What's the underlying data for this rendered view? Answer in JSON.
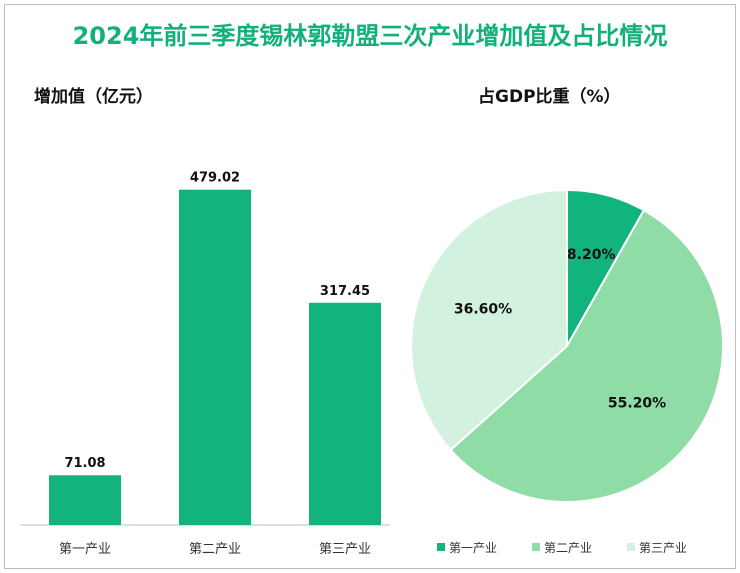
{
  "title": "2024年前三季度锡林郭勒盟三次产业增加值及占比情况",
  "colors": {
    "title": "#11b07c",
    "bar": "#13b37d",
    "pie": [
      "#11b47c",
      "#8fdca6",
      "#d3f1df"
    ]
  },
  "chart_data": [
    {
      "type": "bar",
      "title": "增加值（亿元）",
      "categories": [
        "第一产业",
        "第二产业",
        "第三产业"
      ],
      "values": [
        71.08,
        479.02,
        317.45
      ],
      "value_labels": [
        "71.08",
        "479.02",
        "317.45"
      ],
      "ylim": [
        0,
        560
      ],
      "grid": false
    },
    {
      "type": "pie",
      "title": "占GDP比重（%）",
      "labels": [
        "第一产业",
        "第二产业",
        "第三产业"
      ],
      "values": [
        8.2,
        55.2,
        36.6
      ],
      "value_labels": [
        "8.20%",
        "55.20%",
        "36.60%"
      ],
      "legend_position": "bottom"
    }
  ]
}
